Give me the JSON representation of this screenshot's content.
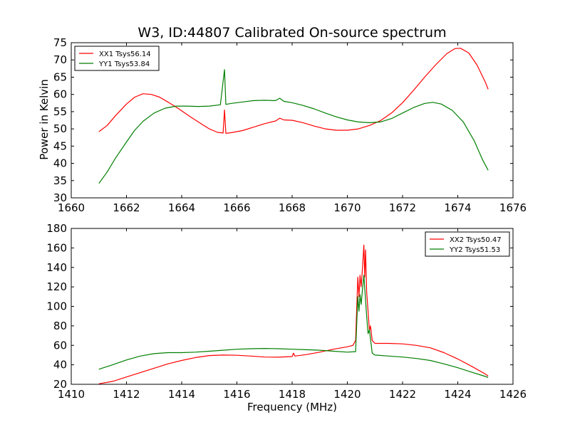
{
  "colors": {
    "red": "#ff0000",
    "green": "#007f00",
    "axes": "#000000",
    "background": "#ffffff"
  },
  "chart_data": [
    {
      "type": "line",
      "title": "W3, ID:44807 Calibrated On-source spectrum",
      "xlabel": "",
      "ylabel": "Power in Kelvin",
      "xlim": [
        1660,
        1676
      ],
      "ylim": [
        30,
        75
      ],
      "xticks": [
        1660,
        1662,
        1664,
        1666,
        1668,
        1670,
        1672,
        1674,
        1676
      ],
      "yticks": [
        30,
        35,
        40,
        45,
        50,
        55,
        60,
        65,
        70,
        75
      ],
      "grid": false,
      "legend_position": "top-left",
      "series": [
        {
          "name": "XX1 Tsys56.14",
          "color": "#ff0000",
          "points": [
            [
              1661.0,
              49.2
            ],
            [
              1661.3,
              51.0
            ],
            [
              1661.6,
              53.8
            ],
            [
              1662.0,
              57.2
            ],
            [
              1662.3,
              59.2
            ],
            [
              1662.6,
              60.2
            ],
            [
              1662.9,
              60.0
            ],
            [
              1663.2,
              59.2
            ],
            [
              1663.5,
              57.8
            ],
            [
              1663.9,
              55.8
            ],
            [
              1664.3,
              53.6
            ],
            [
              1664.7,
              51.5
            ],
            [
              1665.0,
              50.0
            ],
            [
              1665.3,
              49.0
            ],
            [
              1665.5,
              48.8
            ],
            [
              1665.55,
              55.5
            ],
            [
              1665.6,
              48.7
            ],
            [
              1665.8,
              48.9
            ],
            [
              1666.2,
              49.5
            ],
            [
              1666.6,
              50.5
            ],
            [
              1667.0,
              51.5
            ],
            [
              1667.4,
              52.3
            ],
            [
              1667.55,
              53.1
            ],
            [
              1667.7,
              52.6
            ],
            [
              1668.0,
              52.5
            ],
            [
              1668.4,
              51.8
            ],
            [
              1668.8,
              50.8
            ],
            [
              1669.2,
              50.0
            ],
            [
              1669.6,
              49.6
            ],
            [
              1670.0,
              49.6
            ],
            [
              1670.4,
              50.0
            ],
            [
              1670.8,
              51.0
            ],
            [
              1671.2,
              52.4
            ],
            [
              1671.6,
              54.6
            ],
            [
              1672.0,
              57.6
            ],
            [
              1672.4,
              61.2
            ],
            [
              1672.8,
              65.0
            ],
            [
              1673.2,
              68.6
            ],
            [
              1673.6,
              71.8
            ],
            [
              1673.9,
              73.3
            ],
            [
              1674.1,
              73.4
            ],
            [
              1674.4,
              72.0
            ],
            [
              1674.7,
              68.5
            ],
            [
              1675.0,
              63.5
            ],
            [
              1675.1,
              61.5
            ]
          ]
        },
        {
          "name": "YY1 Tsys53.84",
          "color": "#007f00",
          "points": [
            [
              1661.0,
              34.2
            ],
            [
              1661.3,
              37.5
            ],
            [
              1661.6,
              41.5
            ],
            [
              1662.0,
              46.2
            ],
            [
              1662.3,
              49.6
            ],
            [
              1662.6,
              52.2
            ],
            [
              1663.0,
              54.6
            ],
            [
              1663.4,
              56.0
            ],
            [
              1663.8,
              56.6
            ],
            [
              1664.2,
              56.6
            ],
            [
              1664.6,
              56.5
            ],
            [
              1665.0,
              56.6
            ],
            [
              1665.4,
              57.0
            ],
            [
              1665.55,
              67.2
            ],
            [
              1665.6,
              57.1
            ],
            [
              1665.8,
              57.4
            ],
            [
              1666.2,
              57.8
            ],
            [
              1666.6,
              58.2
            ],
            [
              1667.0,
              58.3
            ],
            [
              1667.4,
              58.2
            ],
            [
              1667.55,
              58.9
            ],
            [
              1667.7,
              58.0
            ],
            [
              1668.0,
              57.6
            ],
            [
              1668.4,
              56.8
            ],
            [
              1668.8,
              55.8
            ],
            [
              1669.2,
              54.6
            ],
            [
              1669.6,
              53.5
            ],
            [
              1670.0,
              52.6
            ],
            [
              1670.4,
              52.0
            ],
            [
              1670.8,
              51.8
            ],
            [
              1671.2,
              52.0
            ],
            [
              1671.6,
              53.0
            ],
            [
              1672.0,
              54.6
            ],
            [
              1672.4,
              56.2
            ],
            [
              1672.8,
              57.4
            ],
            [
              1673.1,
              57.7
            ],
            [
              1673.4,
              57.2
            ],
            [
              1673.8,
              55.4
            ],
            [
              1674.2,
              52.0
            ],
            [
              1674.6,
              46.5
            ],
            [
              1674.9,
              41.0
            ],
            [
              1675.1,
              38.0
            ]
          ]
        }
      ]
    },
    {
      "type": "line",
      "title": "",
      "xlabel": "Frequency (MHz)",
      "ylabel": "",
      "xlim": [
        1410,
        1426
      ],
      "ylim": [
        20,
        180
      ],
      "xticks": [
        1410,
        1412,
        1414,
        1416,
        1418,
        1420,
        1422,
        1424,
        1426
      ],
      "yticks": [
        20,
        40,
        60,
        80,
        100,
        120,
        140,
        160,
        180
      ],
      "grid": false,
      "legend_position": "top-right",
      "series": [
        {
          "name": "XX2 Tsys50.47",
          "color": "#ff0000",
          "points": [
            [
              1411.0,
              20.5
            ],
            [
              1411.5,
              23.0
            ],
            [
              1412.0,
              27.5
            ],
            [
              1412.5,
              32.0
            ],
            [
              1413.0,
              36.5
            ],
            [
              1413.5,
              41.0
            ],
            [
              1414.0,
              44.5
            ],
            [
              1414.5,
              47.5
            ],
            [
              1415.0,
              49.5
            ],
            [
              1415.5,
              50.0
            ],
            [
              1416.0,
              49.8
            ],
            [
              1416.5,
              49.0
            ],
            [
              1417.0,
              48.0
            ],
            [
              1417.5,
              47.8
            ],
            [
              1418.0,
              48.5
            ],
            [
              1418.05,
              52.0
            ],
            [
              1418.1,
              49.0
            ],
            [
              1418.5,
              50.5
            ],
            [
              1419.0,
              53.0
            ],
            [
              1419.5,
              56.0
            ],
            [
              1420.0,
              58.5
            ],
            [
              1420.2,
              60.0
            ],
            [
              1420.3,
              65.0
            ],
            [
              1420.38,
              130.0
            ],
            [
              1420.42,
              110.0
            ],
            [
              1420.46,
              132.0
            ],
            [
              1420.5,
              120.0
            ],
            [
              1420.55,
              140.0
            ],
            [
              1420.6,
              163.0
            ],
            [
              1420.63,
              130.0
            ],
            [
              1420.66,
              158.0
            ],
            [
              1420.7,
              115.0
            ],
            [
              1420.75,
              95.0
            ],
            [
              1420.8,
              75.0
            ],
            [
              1420.84,
              80.0
            ],
            [
              1420.9,
              65.0
            ],
            [
              1421.0,
              62.0
            ],
            [
              1421.5,
              62.0
            ],
            [
              1422.0,
              61.5
            ],
            [
              1422.5,
              60.0
            ],
            [
              1423.0,
              57.5
            ],
            [
              1423.5,
              52.5
            ],
            [
              1424.0,
              46.0
            ],
            [
              1424.5,
              38.5
            ],
            [
              1425.0,
              30.5
            ],
            [
              1425.1,
              28.5
            ]
          ]
        },
        {
          "name": "YY2 Tsys51.53",
          "color": "#007f00",
          "points": [
            [
              1411.0,
              35.5
            ],
            [
              1411.5,
              40.0
            ],
            [
              1412.0,
              45.0
            ],
            [
              1412.5,
              49.0
            ],
            [
              1413.0,
              51.5
            ],
            [
              1413.5,
              52.5
            ],
            [
              1414.0,
              52.5
            ],
            [
              1414.5,
              53.0
            ],
            [
              1415.0,
              54.0
            ],
            [
              1415.5,
              55.0
            ],
            [
              1416.0,
              56.0
            ],
            [
              1416.5,
              56.5
            ],
            [
              1417.0,
              56.8
            ],
            [
              1417.5,
              56.5
            ],
            [
              1418.0,
              56.0
            ],
            [
              1418.5,
              55.5
            ],
            [
              1419.0,
              55.0
            ],
            [
              1419.5,
              54.0
            ],
            [
              1420.0,
              53.0
            ],
            [
              1420.3,
              53.5
            ],
            [
              1420.38,
              110.0
            ],
            [
              1420.42,
              95.0
            ],
            [
              1420.46,
              112.0
            ],
            [
              1420.5,
              102.0
            ],
            [
              1420.55,
              118.0
            ],
            [
              1420.6,
              132.0
            ],
            [
              1420.65,
              110.0
            ],
            [
              1420.7,
              90.0
            ],
            [
              1420.75,
              72.0
            ],
            [
              1420.8,
              76.0
            ],
            [
              1420.9,
              52.0
            ],
            [
              1421.0,
              50.0
            ],
            [
              1421.5,
              49.0
            ],
            [
              1422.0,
              48.0
            ],
            [
              1422.5,
              46.5
            ],
            [
              1423.0,
              44.5
            ],
            [
              1423.5,
              41.0
            ],
            [
              1424.0,
              37.0
            ],
            [
              1424.5,
              32.5
            ],
            [
              1425.0,
              28.0
            ],
            [
              1425.1,
              27.0
            ]
          ]
        }
      ]
    }
  ]
}
